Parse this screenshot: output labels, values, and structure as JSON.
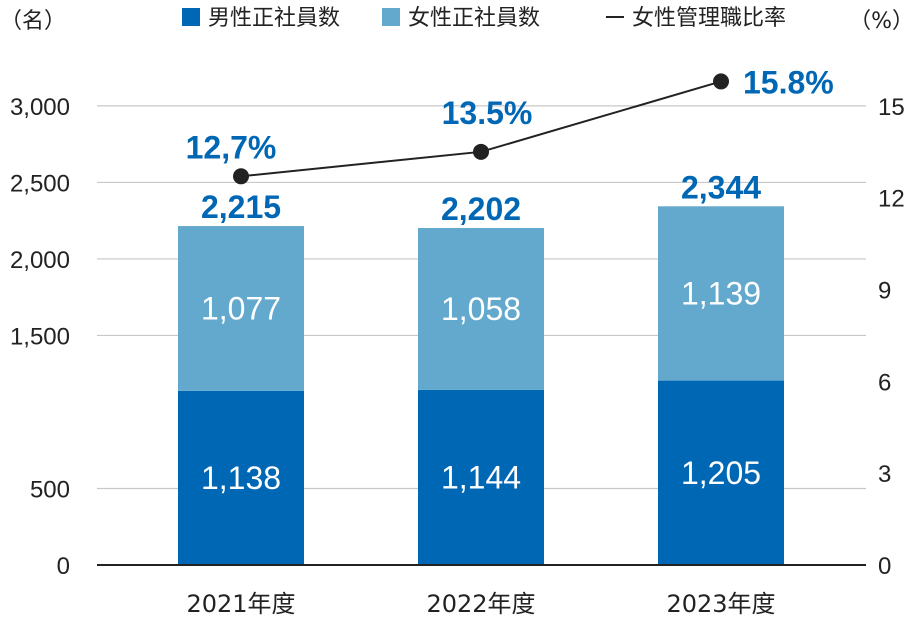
{
  "chart_data": {
    "type": "bar",
    "stacked": true,
    "categories": [
      "2021年度",
      "2022年度",
      "2023年度"
    ],
    "series": [
      {
        "name": "男性正社員数",
        "values": [
          1138,
          1144,
          1205
        ],
        "value_labels": [
          "1,138",
          "1,144",
          "1,205"
        ],
        "color": "#0067b5"
      },
      {
        "name": "女性正社員数",
        "values": [
          1077,
          1058,
          1139
        ],
        "value_labels": [
          "1,077",
          "1,058",
          "1,139"
        ],
        "color": "#62a9cd"
      }
    ],
    "totals": {
      "values": [
        2215,
        2202,
        2344
      ],
      "labels": [
        "2,215",
        "2,202",
        "2,344"
      ],
      "color": "#0067b5"
    },
    "line_series": {
      "name": "女性管理職比率",
      "axis": "right",
      "values": [
        12.7,
        13.5,
        15.8
      ],
      "labels": [
        "12,7%",
        "13.5%",
        "15.8%"
      ],
      "line_color": "#222222",
      "marker_color": "#222222",
      "label_color": "#0067b5"
    },
    "left_axis": {
      "unit": "（名）",
      "ticks": [
        0,
        500,
        1500,
        2000,
        2500,
        3000
      ],
      "tick_labels": [
        "0",
        "500",
        "1,500",
        "2,000",
        "2,500",
        "3,000"
      ],
      "ylim": [
        0,
        3300
      ]
    },
    "right_axis": {
      "unit": "（%）",
      "ticks": [
        0,
        3,
        6,
        9,
        12,
        15
      ],
      "tick_labels": [
        "0",
        "3",
        "6",
        "9",
        "12",
        "15"
      ],
      "ylim": [
        0,
        16.5
      ]
    },
    "legend": {
      "position": "top",
      "items": [
        {
          "label": "男性正社員数",
          "marker": "square",
          "color": "#0067b5"
        },
        {
          "label": "女性正社員数",
          "marker": "square",
          "color": "#62a9cd"
        },
        {
          "label": "女性管理職比率",
          "marker": "dash",
          "color": "#222222"
        }
      ]
    },
    "grid": true,
    "grid_color": "#c8c8c8"
  }
}
